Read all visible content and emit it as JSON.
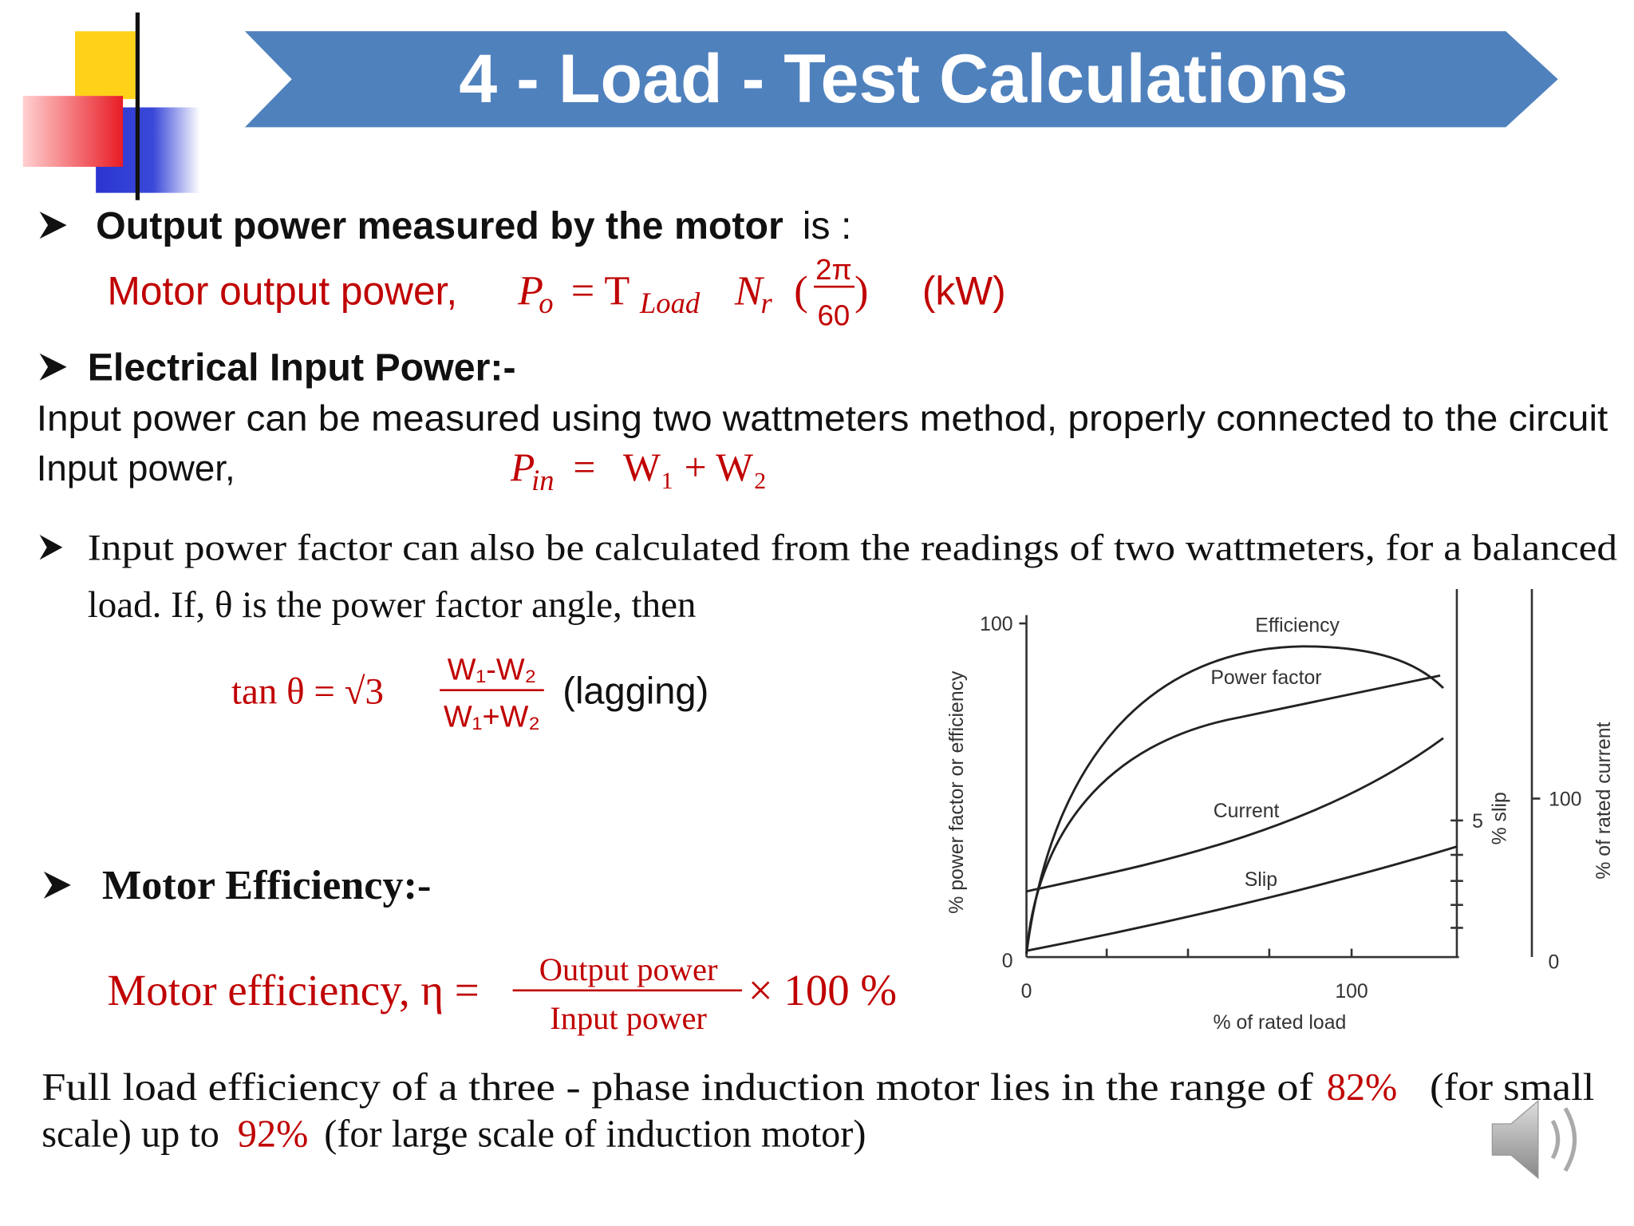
{
  "header": {
    "title": "4 - Load - Test Calculations"
  },
  "output_power": {
    "heading_bold": "Output power measured by the motor",
    "heading_rest": "is :",
    "formula": {
      "label": "Motor output power,",
      "p": "P",
      "p_sub": "o",
      "eq": "= T",
      "t_sub": "Load",
      "n": "N",
      "n_sub": "r",
      "open": "(",
      "num": "2π",
      "den": "60",
      "close": ")",
      "unit": "(kW)"
    }
  },
  "electrical_input": {
    "heading": "Electrical Input Power:-",
    "text": "Input power can be measured using two wattmeters method, properly connected to the circuit",
    "formula_label": "Input power,",
    "p": "P",
    "p_sub": "in",
    "eq": "=",
    "rhs": "W₁ + W₂"
  },
  "power_factor": {
    "line1": "Input power factor can also be calculated from the readings of two wattmeters, for a balanced",
    "line2": "load. If, θ is the power factor angle, then",
    "formula": {
      "lhs": "tan θ = √3",
      "num": "W₁-W₂",
      "den": "W₁+W₂",
      "note": "(lagging)"
    }
  },
  "efficiency": {
    "heading": "Motor Efficiency:-",
    "formula": {
      "label": "Motor efficiency, η =",
      "num": "Output power",
      "den": "Input power",
      "times": "× 100 %"
    }
  },
  "conclusion": {
    "line1_a": "Full load efficiency of a three - phase induction motor lies in the range of",
    "line1_b": "82%",
    "line1_c": "(for small",
    "line2_a": "scale) up to",
    "line2_b": "92%",
    "line2_c": "(for large scale of induction motor)"
  },
  "figure": {
    "y_axis_label": "% power factor or efficiency",
    "y_ticks": [
      "100",
      "0"
    ],
    "x_axis_label": "% of rated load",
    "x_ticks": [
      "0",
      "100"
    ],
    "curves": [
      "Efficiency",
      "Power factor",
      "Current",
      "Slip"
    ],
    "slip_axis_label": "% slip",
    "slip_tick": "5",
    "current_axis_label": "% of rated current",
    "current_ticks": [
      "100",
      "0"
    ]
  }
}
